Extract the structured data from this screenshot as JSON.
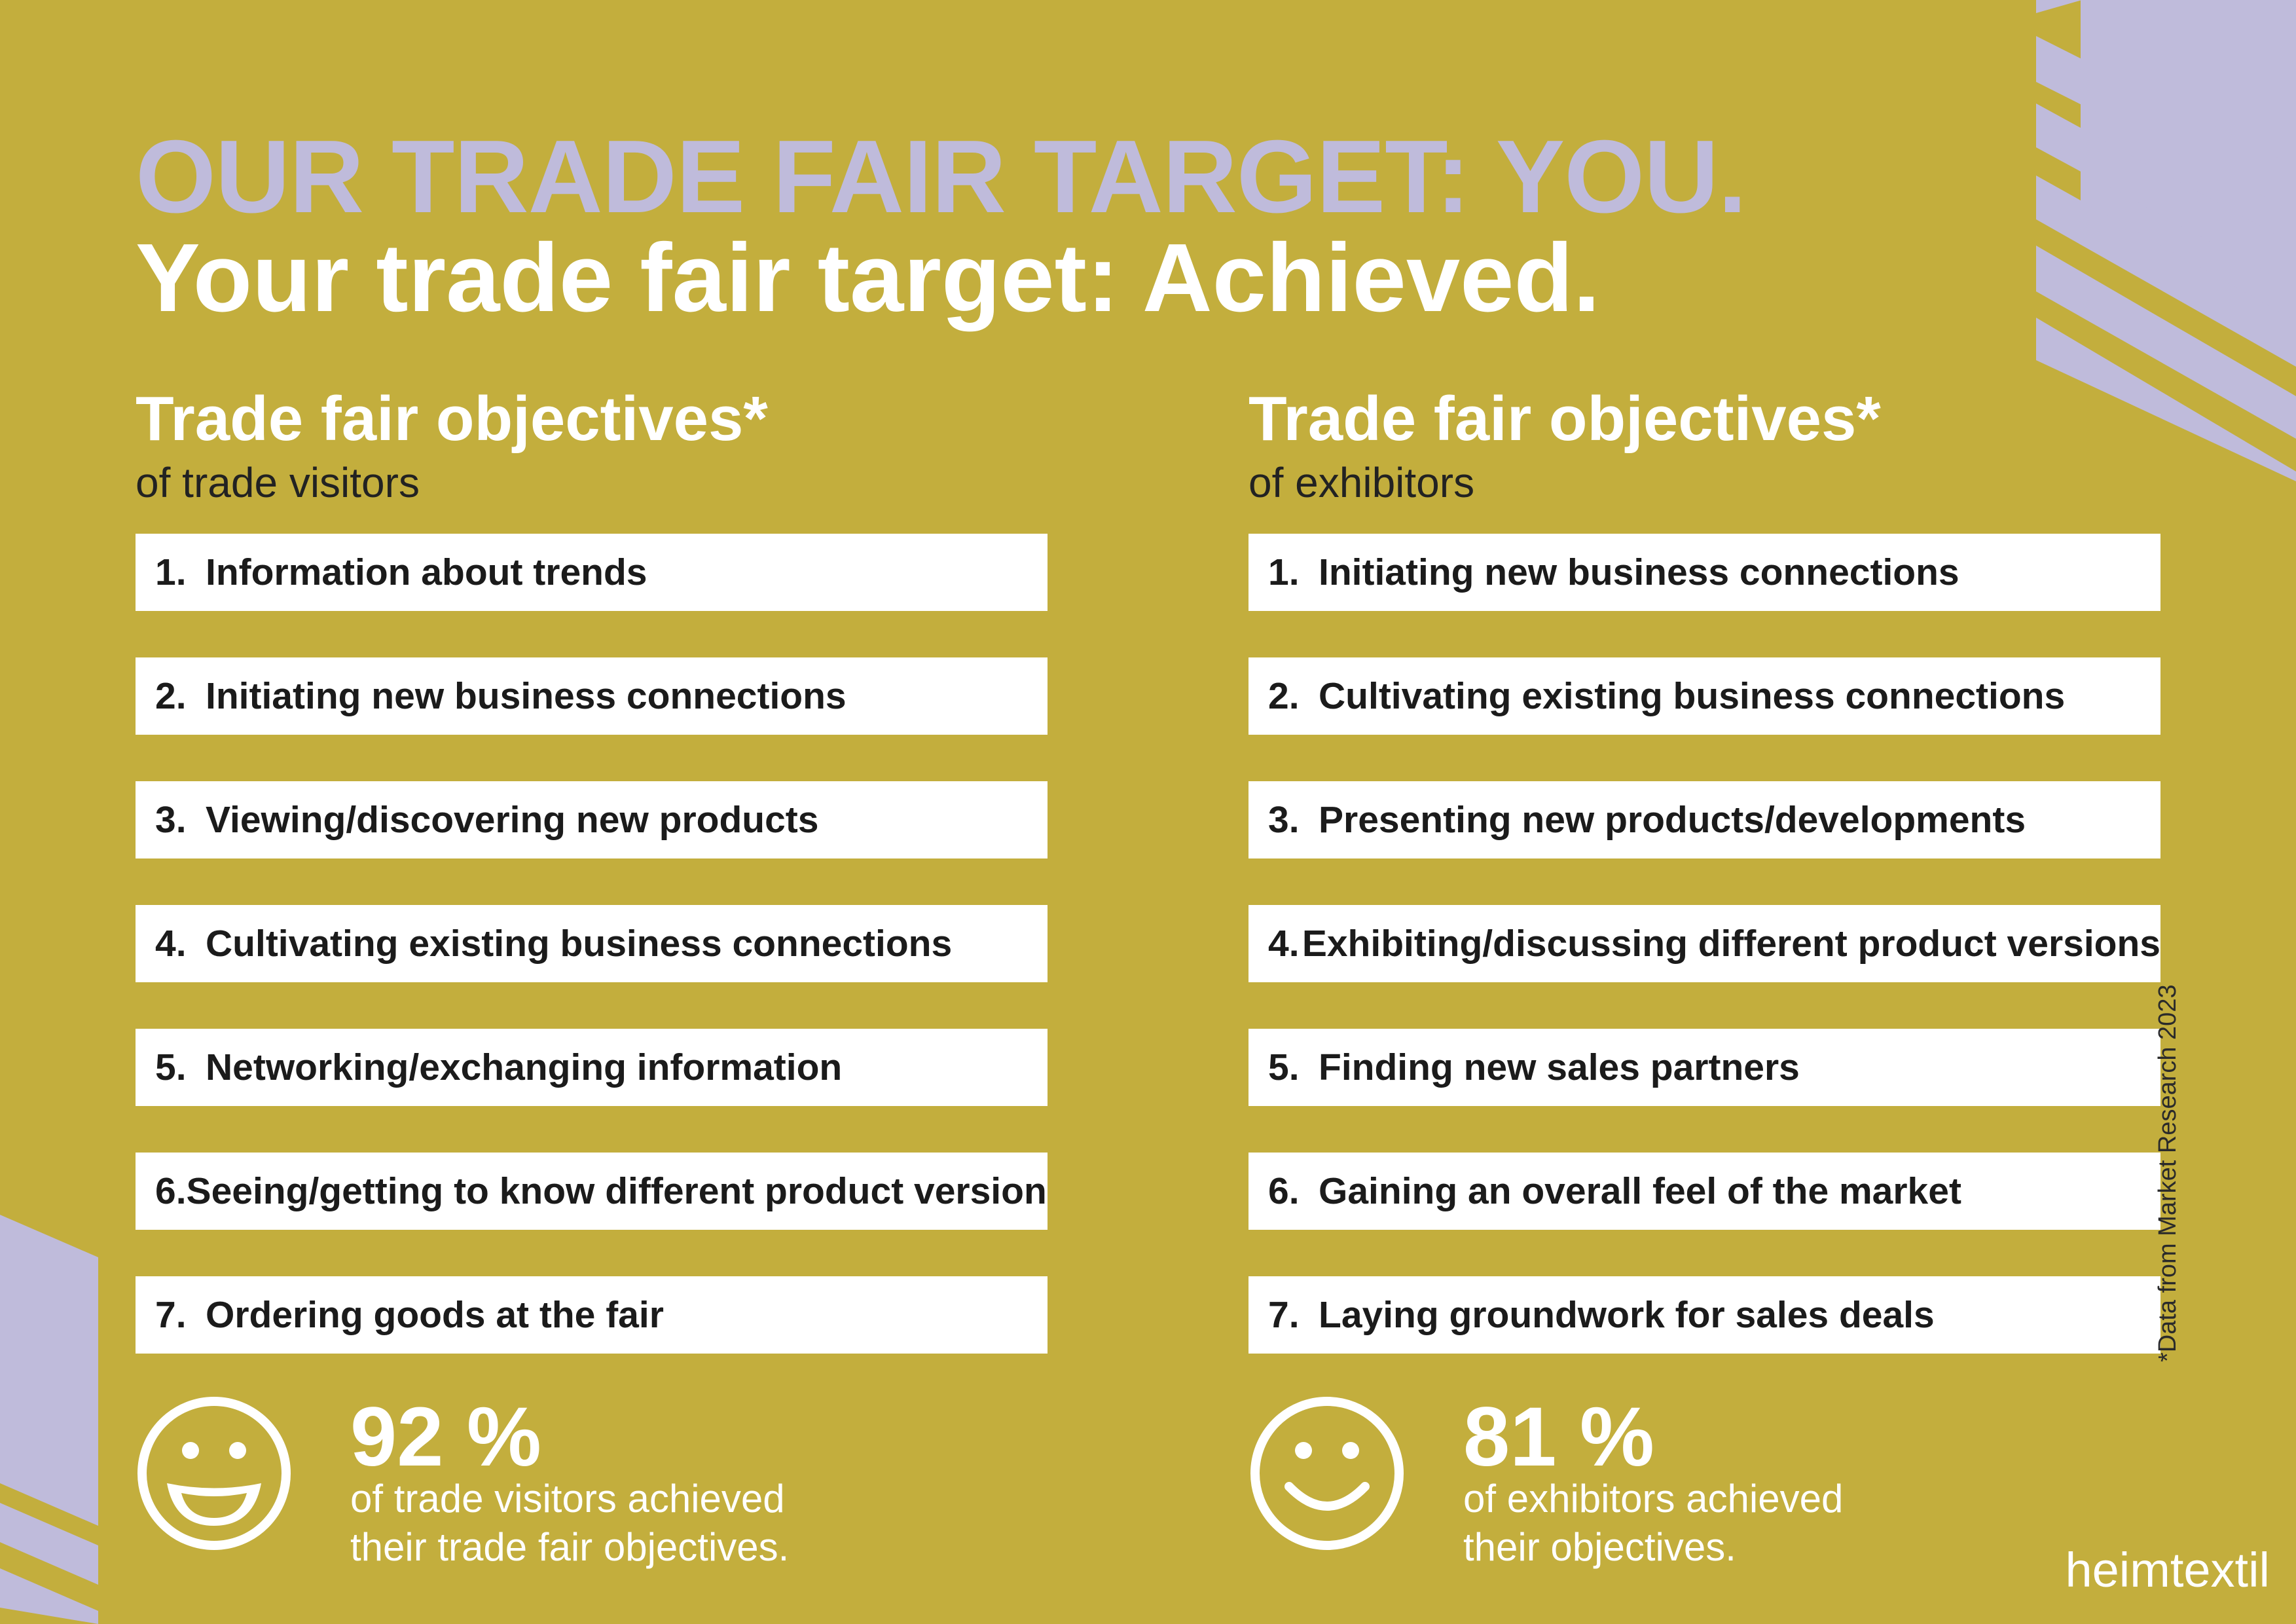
{
  "colors": {
    "background": "#c3ae3d",
    "accent_lilac": "#bfbbdb",
    "box": "#ffffff"
  },
  "headline": {
    "line1": "OUR TRADE FAIR TARGET: YOU.",
    "line2": "Your trade fair target: Achieved."
  },
  "visitors": {
    "title": "Trade fair objectives*",
    "subtitle": "of trade visitors",
    "items": [
      {
        "num": "1.",
        "label": "Information about trends"
      },
      {
        "num": "2.",
        "label": "Initiating new business connections"
      },
      {
        "num": "3.",
        "label": "Viewing/discovering new products"
      },
      {
        "num": "4.",
        "label": "Cultivating existing business connections"
      },
      {
        "num": "5.",
        "label": "Networking/exchanging information"
      },
      {
        "num": "6.",
        "label": "Seeing/getting to know different product versions"
      },
      {
        "num": "7.",
        "label": "Ordering goods at the fair"
      }
    ],
    "stat": {
      "percent": "92 %",
      "text_line1": "of trade visitors achieved",
      "text_line2": "their trade fair objectives.",
      "icon": "laughing-smiley-icon"
    }
  },
  "exhibitors": {
    "title": "Trade fair objectives*",
    "subtitle": "of exhibitors",
    "items": [
      {
        "num": "1.",
        "label": "Initiating new business connections"
      },
      {
        "num": "2.",
        "label": "Cultivating existing business connections"
      },
      {
        "num": "3.",
        "label": "Presenting new products/developments"
      },
      {
        "num": "4.",
        "label": "Exhibiting/discussing different product versions"
      },
      {
        "num": "5.",
        "label": "Finding new sales partners"
      },
      {
        "num": "6.",
        "label": "Gaining an overall feel of the market"
      },
      {
        "num": "7.",
        "label": "Laying groundwork for sales deals"
      }
    ],
    "stat": {
      "percent": "81 %",
      "text_line1": "of exhibitors achieved",
      "text_line2": "their objectives.",
      "icon": "smiley-icon"
    }
  },
  "footnote": "*Data from Market Research 2023",
  "brand": "heimtextil"
}
